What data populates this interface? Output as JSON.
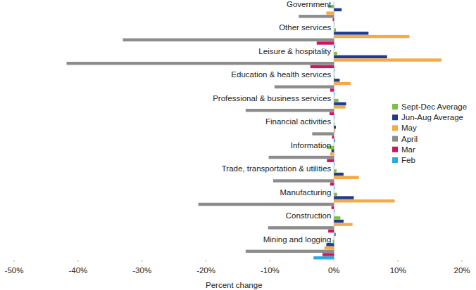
{
  "chart_data": {
    "type": "bar",
    "orientation": "horizontal",
    "x_label": "Percent change",
    "categories": [
      "Government",
      "Other services",
      "Leisure & hospitality",
      "Education & health services",
      "Professional & business services",
      "Financial activities",
      "Information",
      "Trade, transportation & utilities",
      "Manufacturing",
      "Construction",
      "Mining and logging"
    ],
    "series": [
      {
        "name": "Sept-Dec Average",
        "color": "#7dc142",
        "values": [
          -0.9,
          0.3,
          0.5,
          0.1,
          0.7,
          0.1,
          -1.1,
          0.4,
          0.5,
          1.0,
          -0.2
        ]
      },
      {
        "name": "Jun-Aug Average",
        "color": "#1f3b8f",
        "values": [
          1.2,
          5.4,
          8.3,
          0.9,
          1.9,
          0.3,
          -0.4,
          1.5,
          3.1,
          1.5,
          -1.2
        ]
      },
      {
        "name": "May",
        "color": "#f5a947",
        "values": [
          -1.2,
          11.8,
          16.8,
          2.6,
          1.8,
          0.2,
          -0.6,
          3.9,
          9.5,
          2.9,
          -1.5
        ]
      },
      {
        "name": "April",
        "color": "#8c8c8c",
        "values": [
          -5.5,
          -33.0,
          -41.8,
          -9.3,
          -13.8,
          -3.4,
          -10.2,
          -9.5,
          -21.2,
          -10.3,
          -13.8
        ]
      },
      {
        "name": "Mar",
        "color": "#d4145a",
        "values": [
          -0.2,
          -2.7,
          -3.7,
          -0.6,
          -0.7,
          -0.3,
          -1.1,
          -0.6,
          -0.4,
          -0.9,
          -1.8
        ]
      },
      {
        "name": "Feb",
        "color": "#29abe2",
        "values": [
          0.0,
          0.2,
          0.1,
          0.1,
          0.1,
          0.2,
          0.1,
          0.1,
          0.1,
          0.3,
          -3.2
        ]
      }
    ],
    "xlim": [
      -50,
      20
    ],
    "xticks": [
      {
        "value": -50,
        "label": "-50%"
      },
      {
        "value": -40,
        "label": "-40%"
      },
      {
        "value": -30,
        "label": "-30%"
      },
      {
        "value": -20,
        "label": "-20%"
      },
      {
        "value": -10,
        "label": "-10%"
      },
      {
        "value": 0,
        "label": "0%"
      },
      {
        "value": 10,
        "label": "10%"
      },
      {
        "value": 20,
        "label": "20%"
      }
    ],
    "grid": false,
    "legend": "right"
  }
}
